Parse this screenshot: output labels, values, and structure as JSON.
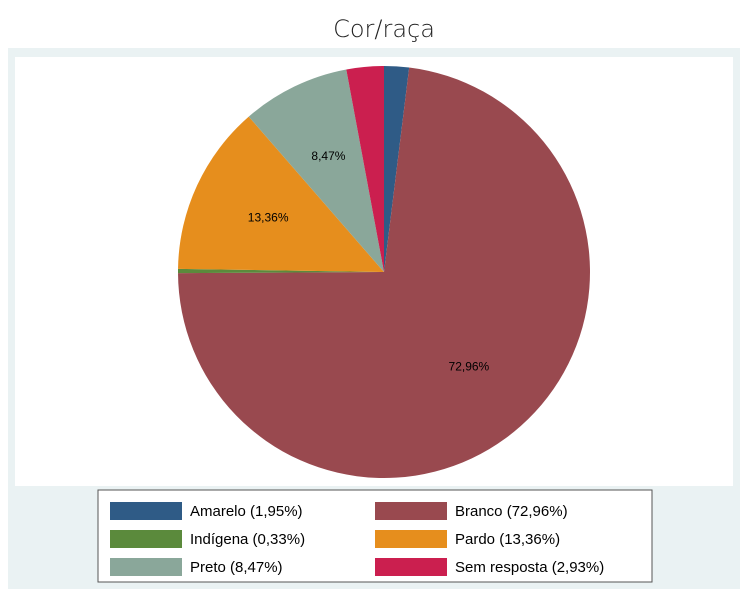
{
  "chart_data": {
    "type": "pie",
    "title": "Cor/raça",
    "categories": [
      "Amarelo (1,95%)",
      "Branco (72,96%)",
      "Indígena (0,33%)",
      "Pardo (13,36%)",
      "Preto (8,47%)",
      "Sem resposta (2,93%)"
    ],
    "values": [
      1.95,
      72.96,
      0.33,
      13.36,
      8.47,
      2.93
    ],
    "value_labels": [
      null,
      "72,96%",
      null,
      "13,36%",
      "8,47%",
      null
    ],
    "colors": [
      "#2f5b86",
      "#99494f",
      "#5b8a3c",
      "#e68e1d",
      "#8aa79a",
      "#cb1f4f"
    ]
  }
}
